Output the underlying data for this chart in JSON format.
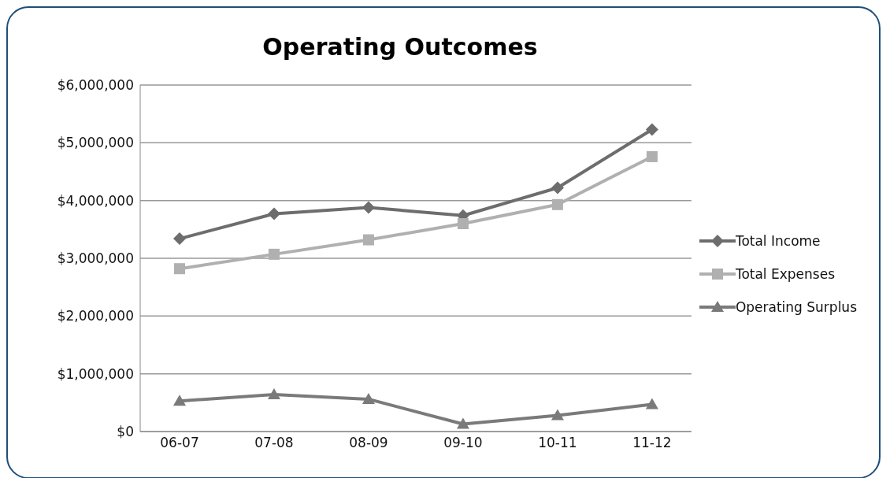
{
  "chart_data": {
    "type": "line",
    "title": "Operating Outcomes",
    "categories": [
      "06-07",
      "07-08",
      "08-09",
      "09-10",
      "10-11",
      "11-12"
    ],
    "series": [
      {
        "name": "Total Income",
        "color": "#6d6d6d",
        "marker": "diamond",
        "values": [
          3340000,
          3770000,
          3880000,
          3740000,
          4220000,
          5230000
        ]
      },
      {
        "name": "Total Expenses",
        "color": "#b0b0b0",
        "marker": "square",
        "values": [
          2820000,
          3070000,
          3320000,
          3600000,
          3930000,
          4760000
        ]
      },
      {
        "name": "Operating Surplus",
        "color": "#7a7a7a",
        "marker": "triangle",
        "values": [
          530000,
          640000,
          560000,
          130000,
          280000,
          470000
        ]
      }
    ],
    "ylim": [
      0,
      6000000
    ],
    "yticks": [
      {
        "value": 0,
        "label": "$0"
      },
      {
        "value": 1000000,
        "label": "$1,000,000"
      },
      {
        "value": 2000000,
        "label": "$2,000,000"
      },
      {
        "value": 3000000,
        "label": "$3,000,000"
      },
      {
        "value": 4000000,
        "label": "$4,000,000"
      },
      {
        "value": 5000000,
        "label": "$5,000,000"
      },
      {
        "value": 6000000,
        "label": "$6,000,000"
      }
    ],
    "grid": "y",
    "legend": "right",
    "line_style": "solid"
  }
}
